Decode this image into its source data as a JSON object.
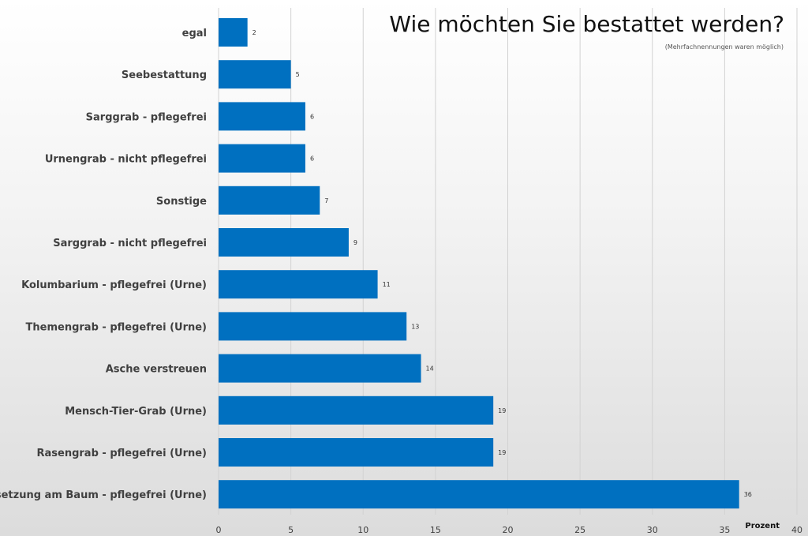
{
  "chart_data": {
    "type": "bar",
    "orientation": "horizontal",
    "title": "Wie möchten Sie bestattet werden?",
    "subtitle": "(Mehrfachnennungen waren möglich)",
    "xlabel": "Prozent",
    "ylabel": "",
    "xlim": [
      0,
      40
    ],
    "xticks": [
      0,
      5,
      10,
      15,
      20,
      25,
      30,
      35,
      40
    ],
    "grid": true,
    "bar_color": "#0070C0",
    "categories": [
      "egal",
      "Seebestattung",
      "Sarggrab - pflegefrei",
      "Urnengrab - nicht pflegefrei",
      "Sonstige",
      "Sarggrab - nicht pflegefrei",
      "Kolumbarium - pflegefrei (Urne)",
      "Themengrab - pflegefrei (Urne)",
      "Asche verstreuen",
      "Mensch-Tier-Grab (Urne)",
      "Rasengrab - pflegefrei (Urne)",
      "Beisetzung am Baum  - pflegefrei (Urne)"
    ],
    "values": [
      2,
      5,
      6,
      6,
      7,
      9,
      11,
      13,
      14,
      19,
      19,
      36
    ]
  }
}
